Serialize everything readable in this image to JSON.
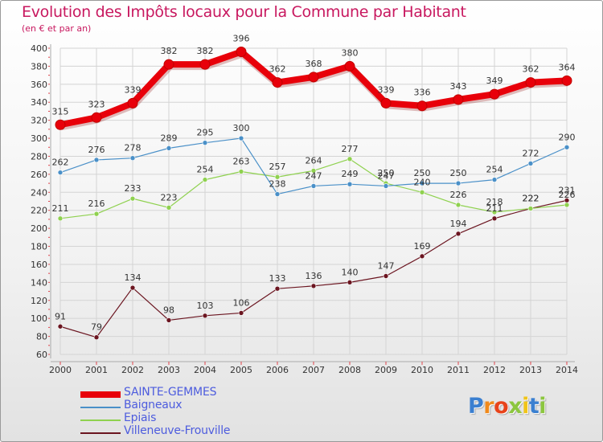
{
  "chart_data": {
    "type": "line",
    "title": "Evolution des Impôts locaux pour la Commune par Habitant",
    "subtitle": "(en € et par an)",
    "xlabel": "",
    "ylabel": "",
    "ylim": [
      60,
      400
    ],
    "yticks": [
      60,
      80,
      100,
      120,
      140,
      160,
      180,
      200,
      220,
      240,
      260,
      280,
      300,
      320,
      340,
      360,
      380,
      400
    ],
    "grid": true,
    "legend_position": "bottom-left",
    "categories": [
      "2000",
      "2001",
      "2002",
      "2003",
      "2004",
      "2005",
      "2006",
      "2007",
      "2008",
      "2009",
      "2010",
      "2011",
      "2012",
      "2013",
      "2014"
    ],
    "series": [
      {
        "name": "SAINTE-GEMMES",
        "color": "#e8000a",
        "style": "thick",
        "values": [
          315,
          323,
          339,
          382,
          382,
          396,
          362,
          368,
          380,
          339,
          336,
          343,
          349,
          362,
          364
        ]
      },
      {
        "name": "Baigneaux",
        "color": "#4a90c8",
        "style": "thin",
        "values": [
          262,
          276,
          278,
          289,
          295,
          300,
          238,
          247,
          249,
          247,
          250,
          250,
          254,
          272,
          290
        ]
      },
      {
        "name": "Epiais",
        "color": "#8fd14f",
        "style": "thin",
        "values": [
          211,
          216,
          233,
          223,
          254,
          263,
          257,
          264,
          277,
          250,
          240,
          226,
          218,
          222,
          226
        ]
      },
      {
        "name": "Villeneuve-Frouville",
        "color": "#6b1520",
        "style": "thin",
        "values": [
          91,
          79,
          134,
          98,
          103,
          106,
          133,
          136,
          140,
          147,
          169,
          194,
          211,
          222,
          231
        ]
      }
    ]
  },
  "logo": {
    "text": "Proxiti",
    "letter_colors": [
      "#3a7fd0",
      "#f08a1c",
      "#e8431a",
      "#8cc63f",
      "#f0c419",
      "#3a7fd0",
      "#8cc63f"
    ]
  }
}
